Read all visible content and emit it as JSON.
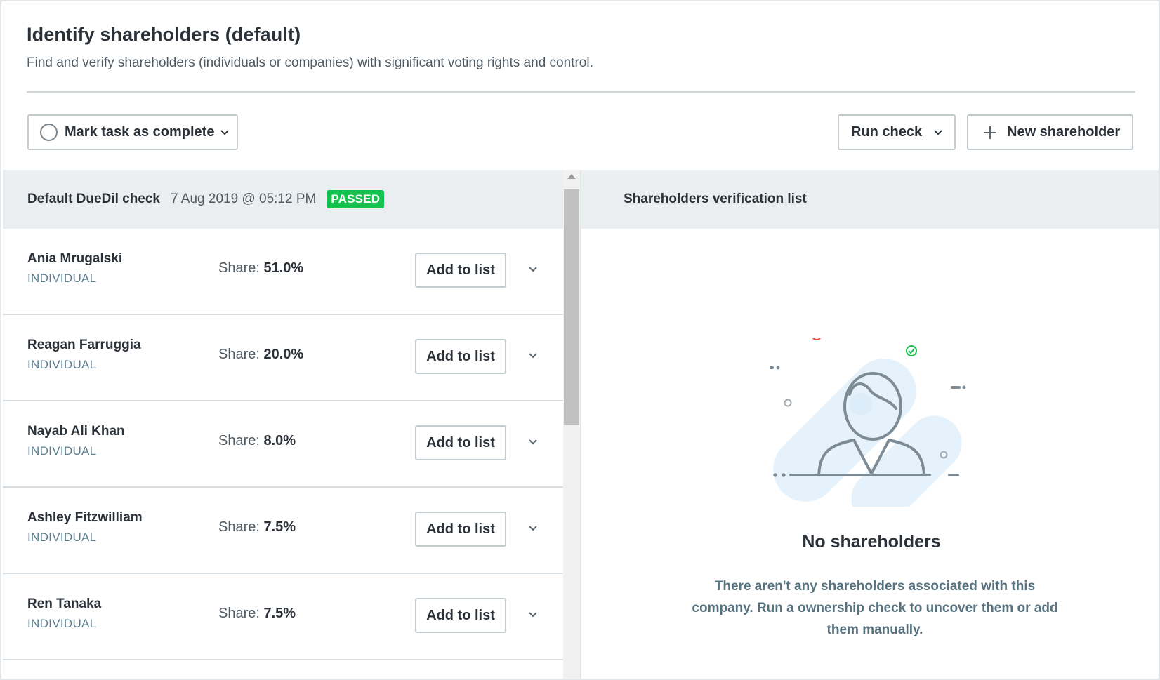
{
  "header": {
    "title": "Identify shareholders (default)",
    "subtitle": "Find and verify shareholders (individuals or companies) with significant voting rights and control."
  },
  "toolbar": {
    "mark_complete_label": "Mark task as complete",
    "run_check_label": "Run check",
    "new_shareholder_label": "New shareholder"
  },
  "check": {
    "name": "Default DueDil check",
    "date": "7 Aug 2019 @ 05:12 PM",
    "status": "PASSED",
    "status_color": "#14c24f"
  },
  "shareholders": [
    {
      "name": "Ania Mrugalski",
      "type": "INDIVIDUAL",
      "share_label": "Share:",
      "share": "51.0%",
      "add_label": "Add to list"
    },
    {
      "name": "Reagan Farruggia",
      "type": "INDIVIDUAL",
      "share_label": "Share:",
      "share": "20.0%",
      "add_label": "Add to list"
    },
    {
      "name": "Nayab Ali Khan",
      "type": "INDIVIDUAL",
      "share_label": "Share:",
      "share": "8.0%",
      "add_label": "Add to list"
    },
    {
      "name": "Ashley Fitzwilliam",
      "type": "INDIVIDUAL",
      "share_label": "Share:",
      "share": "7.5%",
      "add_label": "Add to list"
    },
    {
      "name": "Ren Tanaka",
      "type": "INDIVIDUAL",
      "share_label": "Share:",
      "share": "7.5%",
      "add_label": "Add to list"
    }
  ],
  "verification": {
    "title": "Shareholders verification list",
    "empty_title": "No shareholders",
    "empty_description": "There aren't any shareholders associated with this company. Run a ownership check to uncover them or add them manually."
  },
  "icons": {
    "complete": "circle-icon",
    "dropdown": "chevron-down-icon",
    "add": "plus-icon",
    "illustration": "person-avatar-illustration"
  }
}
